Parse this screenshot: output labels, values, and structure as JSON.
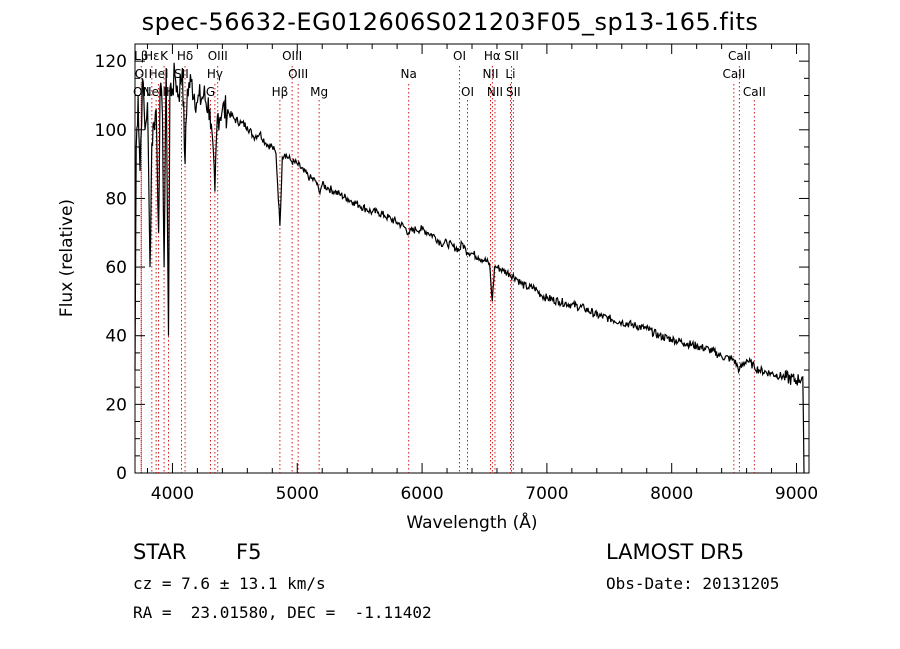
{
  "title": "spec-56632-EG012606S021203F05_sp13-165.fits",
  "info": {
    "object_class": "STAR",
    "subclass": "F5",
    "survey": "LAMOST DR5",
    "cz": "cz = 7.6 ± 13.1 km/s",
    "obs_date": "Obs-Date: 20131205",
    "radec": "RA =  23.01580, DEC =  -1.11402"
  },
  "chart_data": {
    "type": "line",
    "title": "spec-56632-EG012606S021203F05_sp13-165.fits",
    "xlabel": "Wavelength (Å)",
    "ylabel": "Flux (relative)",
    "xlim": [
      3700,
      9100
    ],
    "ylim": [
      0,
      125
    ],
    "x_ticks": [
      4000,
      5000,
      6000,
      7000,
      8000,
      9000
    ],
    "y_ticks": [
      0,
      20,
      40,
      60,
      80,
      100,
      120
    ],
    "grid": false,
    "line_color": "#000000",
    "marker_color": "#cc0000",
    "series": [
      {
        "x": [
          3700,
          3710,
          3725,
          3740,
          3760,
          3780,
          3800,
          3820,
          3835,
          3850,
          3870,
          3889,
          3900,
          3920,
          3933,
          3950,
          3968,
          3980,
          4000,
          4020,
          4050,
          4080,
          4101,
          4120,
          4150,
          4200,
          4250,
          4300,
          4340,
          4360,
          4400,
          4450,
          4500,
          4550,
          4600,
          4650,
          4700,
          4750,
          4800,
          4830,
          4861,
          4880,
          4900,
          4950,
          5000,
          5050,
          5100,
          5150,
          5175,
          5200,
          5250,
          5300,
          5350,
          5400,
          5450,
          5500,
          5550,
          5600,
          5650,
          5700,
          5750,
          5800,
          5850,
          5893,
          5950,
          6000,
          6050,
          6100,
          6150,
          6200,
          6250,
          6300,
          6320,
          6350,
          6400,
          6450,
          6500,
          6540,
          6563,
          6580,
          6600,
          6650,
          6700,
          6750,
          6800,
          6850,
          6900,
          6950,
          7000,
          7100,
          7200,
          7300,
          7400,
          7500,
          7600,
          7700,
          7800,
          7900,
          8000,
          8100,
          8200,
          8300,
          8400,
          8498,
          8542,
          8600,
          8662,
          8700,
          8800,
          8900,
          9000,
          9050,
          9060
        ],
        "y": [
          30,
          95,
          110,
          88,
          115,
          100,
          108,
          60,
          96,
          102,
          106,
          70,
          112,
          104,
          60,
          118,
          40,
          112,
          112,
          116,
          110,
          118,
          90,
          112,
          114,
          108,
          110,
          106,
          82,
          104,
          106,
          105,
          103,
          102,
          101,
          98,
          99,
          96,
          95,
          93,
          72,
          92,
          93,
          91,
          90,
          88,
          86,
          85,
          82,
          84,
          83,
          82,
          81,
          80,
          79,
          78,
          77,
          76,
          76,
          75,
          74,
          73,
          72,
          70,
          71,
          71,
          70,
          69,
          67,
          67,
          66,
          65,
          67,
          65,
          64,
          63,
          62,
          61,
          50,
          60,
          60,
          59,
          58,
          57,
          55,
          54,
          54,
          52,
          51,
          50,
          49,
          48,
          46,
          45,
          44,
          43,
          42,
          40,
          39,
          38,
          37,
          36,
          34,
          33,
          30,
          33,
          31,
          30,
          29,
          28,
          27,
          28,
          0
        ]
      }
    ],
    "line_markers": [
      {
        "label": "Lβ",
        "x": 3750,
        "row": 0
      },
      {
        "label": "OI",
        "x": 3750,
        "row": 1
      },
      {
        "label": "OII",
        "x": 3750,
        "row": 2
      },
      {
        "label": "Hε",
        "x": 3835,
        "row": 0
      },
      {
        "label": "HeI",
        "x": 3889,
        "row": 1
      },
      {
        "label": "NeIII",
        "x": 3869,
        "row": 2
      },
      {
        "label": "K",
        "x": 3933,
        "row": 0
      },
      {
        "label": "H",
        "x": 3968,
        "row": 2
      },
      {
        "label": "Hδ",
        "x": 4101,
        "row": 0
      },
      {
        "label": "SII",
        "x": 4072,
        "row": 1
      },
      {
        "label": "OIII",
        "x": 4363,
        "row": 0
      },
      {
        "label": "Hγ",
        "x": 4340,
        "row": 1
      },
      {
        "label": "G",
        "x": 4305,
        "row": 2
      },
      {
        "label": "OIII",
        "x": 4959,
        "row": 0
      },
      {
        "label": "OIII",
        "x": 5007,
        "row": 1
      },
      {
        "label": "Hβ",
        "x": 4861,
        "row": 2
      },
      {
        "label": "Mg",
        "x": 5175,
        "row": 2
      },
      {
        "label": "Na",
        "x": 5893,
        "row": 1
      },
      {
        "label": "OI",
        "x": 6300,
        "row": 0
      },
      {
        "label": "OI",
        "x": 6364,
        "row": 2
      },
      {
        "label": "Hα",
        "x": 6563,
        "row": 0
      },
      {
        "label": "SII",
        "x": 6717,
        "row": 0
      },
      {
        "label": "NII",
        "x": 6548,
        "row": 1
      },
      {
        "label": "Li",
        "x": 6708,
        "row": 1
      },
      {
        "label": "NII",
        "x": 6584,
        "row": 2
      },
      {
        "label": "SII",
        "x": 6731,
        "row": 2
      },
      {
        "label": "CaII",
        "x": 8542,
        "row": 0
      },
      {
        "label": "CaII",
        "x": 8498,
        "row": 1
      },
      {
        "label": "CaII",
        "x": 8662,
        "row": 2
      }
    ]
  }
}
